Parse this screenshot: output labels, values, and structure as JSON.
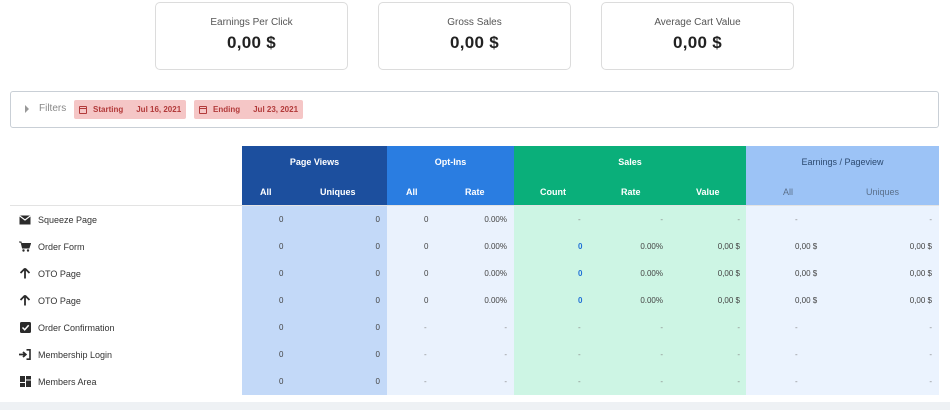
{
  "summary_cards": [
    {
      "label": "Earnings Per Click",
      "value": "0,00 $"
    },
    {
      "label": "Gross Sales",
      "value": "0,00 $"
    },
    {
      "label": "Average Cart Value",
      "value": "0,00 $"
    }
  ],
  "filters": {
    "label": "Filters",
    "starting_label": "Starting",
    "starting_value": "Jul 16, 2021",
    "ending_label": "Ending",
    "ending_value": "Jul 23, 2021"
  },
  "table": {
    "groups": {
      "page_views": "Page Views",
      "opt_ins": "Opt-Ins",
      "sales": "Sales",
      "earnings": "Earnings / Pageview"
    },
    "subheaders": {
      "pv_all": "All",
      "pv_uniques": "Uniques",
      "oi_all": "All",
      "oi_rate": "Rate",
      "sa_count": "Count",
      "sa_rate": "Rate",
      "sa_value": "Value",
      "ep_all": "All",
      "ep_uniques": "Uniques"
    },
    "rows": [
      {
        "page": "Squeeze Page",
        "icon": "envelope-icon",
        "pv_all": "0",
        "pv_uniques": "0",
        "oi_all": "0",
        "oi_rate": "0.00%",
        "sa_count": "-",
        "sa_rate": "-",
        "sa_value": "-",
        "ep_all": "-",
        "ep_uniques": "-"
      },
      {
        "page": "Order Form",
        "icon": "cart-icon",
        "pv_all": "0",
        "pv_uniques": "0",
        "oi_all": "0",
        "oi_rate": "0.00%",
        "sa_count": "0",
        "sa_rate": "0.00%",
        "sa_value": "0,00 $",
        "ep_all": "0,00 $",
        "ep_uniques": "0,00 $"
      },
      {
        "page": "OTO Page",
        "icon": "arrow-up-icon",
        "pv_all": "0",
        "pv_uniques": "0",
        "oi_all": "0",
        "oi_rate": "0.00%",
        "sa_count": "0",
        "sa_rate": "0.00%",
        "sa_value": "0,00 $",
        "ep_all": "0,00 $",
        "ep_uniques": "0,00 $"
      },
      {
        "page": "OTO Page",
        "icon": "arrow-up-icon",
        "pv_all": "0",
        "pv_uniques": "0",
        "oi_all": "0",
        "oi_rate": "0.00%",
        "sa_count": "0",
        "sa_rate": "0.00%",
        "sa_value": "0,00 $",
        "ep_all": "0,00 $",
        "ep_uniques": "0,00 $"
      },
      {
        "page": "Order Confirmation",
        "icon": "check-square-icon",
        "pv_all": "0",
        "pv_uniques": "0",
        "oi_all": "-",
        "oi_rate": "-",
        "sa_count": "-",
        "sa_rate": "-",
        "sa_value": "-",
        "ep_all": "-",
        "ep_uniques": "-"
      },
      {
        "page": "Membership Login",
        "icon": "sign-in-icon",
        "pv_all": "0",
        "pv_uniques": "0",
        "oi_all": "-",
        "oi_rate": "-",
        "sa_count": "-",
        "sa_rate": "-",
        "sa_value": "-",
        "ep_all": "-",
        "ep_uniques": "-"
      },
      {
        "page": "Members Area",
        "icon": "dashboard-icon",
        "pv_all": "0",
        "pv_uniques": "0",
        "oi_all": "-",
        "oi_rate": "-",
        "sa_count": "-",
        "sa_rate": "-",
        "sa_value": "-",
        "ep_all": "-",
        "ep_uniques": "-"
      }
    ]
  }
}
